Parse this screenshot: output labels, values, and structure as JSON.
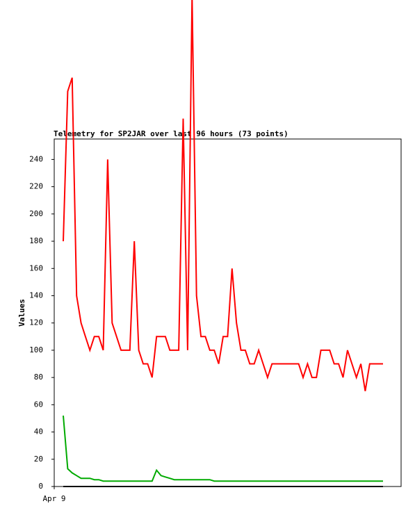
{
  "chart_data": {
    "type": "line",
    "title": "Telemetry for SP2JAR over last 96 hours (73 points)",
    "y_label": "Values",
    "categories": [
      "Apr 9",
      null,
      null,
      null,
      null,
      null,
      null,
      null,
      null,
      null,
      null,
      null,
      null,
      null,
      null,
      null,
      null,
      null,
      null,
      null,
      null,
      null,
      null,
      null,
      null,
      null,
      null,
      null,
      null,
      null,
      null,
      null,
      null,
      null,
      null,
      null,
      null,
      null,
      null,
      null,
      null,
      null,
      null,
      null,
      null,
      null,
      null,
      null,
      null,
      null,
      null,
      null,
      null,
      null,
      null,
      null,
      null,
      null,
      null,
      null,
      null,
      null,
      null,
      null,
      null,
      null,
      null,
      null,
      null,
      null,
      null,
      null,
      null
    ],
    "series": [
      {
        "color": "#ff0000",
        "values": [
          180,
          290,
          300,
          140,
          120,
          110,
          100,
          110,
          110,
          100,
          240,
          120,
          110,
          100,
          100,
          100,
          180,
          100,
          90,
          90,
          80,
          110,
          110,
          110,
          100,
          100,
          100,
          270,
          100,
          360,
          140,
          110,
          110,
          100,
          100,
          90,
          110,
          110,
          160,
          120,
          100,
          100,
          90,
          90,
          100,
          90,
          80,
          90,
          90,
          90,
          90,
          90,
          90,
          90,
          80,
          90,
          80,
          80,
          100,
          100,
          100,
          90,
          90,
          80,
          100,
          90,
          80,
          90,
          70,
          90,
          90,
          90,
          90
        ]
      },
      {
        "color": "#00aa00",
        "values": [
          52,
          13,
          10,
          8,
          6,
          6,
          6,
          5,
          5,
          4,
          4,
          4,
          4,
          4,
          4,
          4,
          4,
          4,
          4,
          4,
          4,
          12,
          8,
          7,
          6,
          5,
          5,
          5,
          5,
          5,
          5,
          5,
          5,
          5,
          4,
          4,
          4,
          4,
          4,
          4,
          4,
          4,
          4,
          4,
          4,
          4,
          4,
          4,
          4,
          4,
          4,
          4,
          4,
          4,
          4,
          4,
          4,
          4,
          4,
          4,
          4,
          4,
          4,
          4,
          4,
          4,
          4,
          4,
          4,
          4,
          4,
          4,
          4
        ]
      },
      {
        "color": "#000000",
        "values": [
          0,
          0,
          0,
          0,
          0,
          0,
          0,
          0,
          0,
          0,
          0,
          0,
          0,
          0,
          0,
          0,
          0,
          0,
          0,
          0,
          0,
          0,
          0,
          0,
          0,
          0,
          0,
          0,
          0,
          0,
          0,
          0,
          0,
          0,
          0,
          0,
          0,
          0,
          0,
          0,
          0,
          0,
          0,
          0,
          0,
          0,
          0,
          0,
          0,
          0,
          0,
          0,
          0,
          0,
          0,
          0,
          0,
          0,
          0,
          0,
          0,
          0,
          0,
          0,
          0,
          0,
          0,
          0,
          0,
          0,
          0,
          0,
          0
        ]
      }
    ],
    "ylim": [
      0,
      255
    ],
    "yticks": [
      0,
      20,
      40,
      60,
      80,
      100,
      120,
      140,
      160,
      180,
      200,
      220,
      240
    ]
  }
}
